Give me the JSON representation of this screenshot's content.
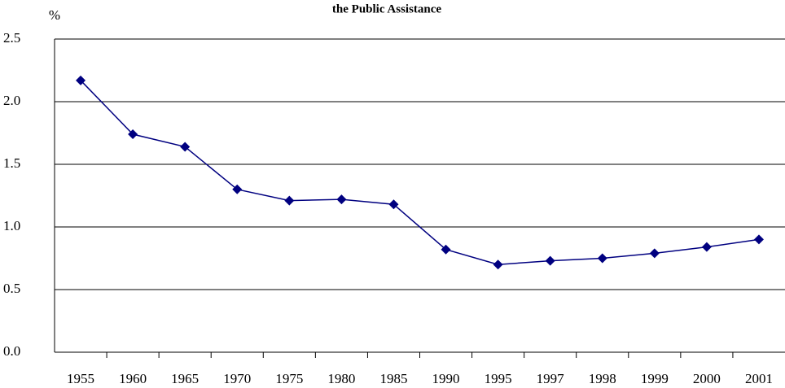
{
  "chart_data": {
    "type": "line",
    "title": "the Public Assistance",
    "y_label": "%",
    "categories": [
      "1955",
      "1960",
      "1965",
      "1970",
      "1975",
      "1980",
      "1985",
      "1990",
      "1995",
      "1997",
      "1998",
      "1999",
      "2000",
      "2001"
    ],
    "series": [
      {
        "name": "Public Assistance",
        "color": "#000080",
        "values": [
          2.17,
          1.74,
          1.64,
          1.3,
          1.21,
          1.22,
          1.18,
          0.82,
          0.7,
          0.73,
          0.75,
          0.79,
          0.84,
          0.9
        ]
      }
    ],
    "ylim": [
      0,
      2.5
    ],
    "yticks": [
      {
        "value": 0,
        "label": "0.0"
      },
      0.5,
      {
        "value": 1,
        "label": "1.0"
      },
      1.5,
      {
        "value": 2,
        "label": "2.0"
      },
      2.5
    ],
    "grid": true
  }
}
